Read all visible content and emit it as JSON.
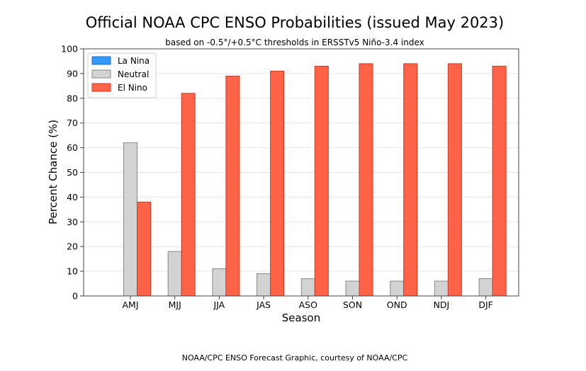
{
  "chart_data": {
    "type": "bar",
    "title": "Official NOAA CPC ENSO Probabilities (issued May 2023)",
    "subtitle": "based on -0.5°/+0.5°C thresholds in ERSSTv5 Niño-3.4 index",
    "xlabel": "Season",
    "ylabel": "Percent Chance (%)",
    "ylim": [
      0,
      100
    ],
    "yticks": [
      0,
      10,
      20,
      30,
      40,
      50,
      60,
      70,
      80,
      90,
      100
    ],
    "grid": true,
    "legend_position": "top-left",
    "categories": [
      "AMJ",
      "MJJ",
      "JJA",
      "JAS",
      "ASO",
      "SON",
      "OND",
      "NDJ",
      "DJF"
    ],
    "series": [
      {
        "name": "La Nina",
        "color": "#3399ff",
        "values": [
          0,
          0,
          0,
          0,
          0,
          0,
          0,
          0,
          0
        ]
      },
      {
        "name": "Neutral",
        "color": "#d3d3d3",
        "values": [
          62,
          18,
          11,
          9,
          7,
          6,
          6,
          6,
          7
        ]
      },
      {
        "name": "El Nino",
        "color": "#ff6347",
        "values": [
          38,
          82,
          89,
          91,
          93,
          94,
          94,
          94,
          93
        ]
      }
    ]
  },
  "footer": "NOAA/CPC ENSO Forecast Graphic, courtesy of NOAA/CPC"
}
